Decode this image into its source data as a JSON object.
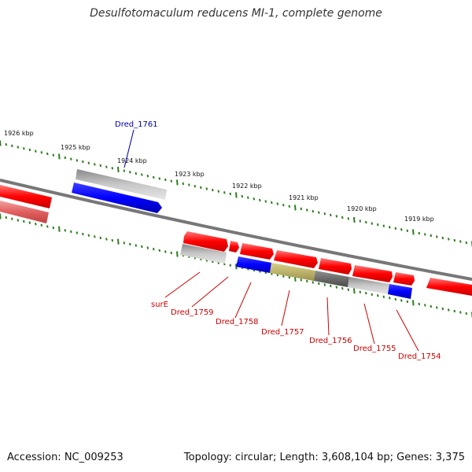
{
  "title": "Desulfotomaculum reducens MI-1, complete genome",
  "footer": {
    "accession": "Accession: NC_009253",
    "topology": "Topology: circular; Length: 3,608,104 bp; Genes: 3,375"
  },
  "colors": {
    "forward_gene": "#ff0000",
    "reverse_gene": "#0000ff",
    "tick": "#2f7d1f",
    "backbone": "#808080",
    "label_red": "#cc0000",
    "label_blue": "#0000aa"
  },
  "scale": {
    "unit": "kbp",
    "labels": [
      "1926 kbp",
      "1925 kbp",
      "1924 kbp",
      "1923 kbp",
      "1922 kbp",
      "1921 kbp",
      "1920 kbp",
      "1919 kbp"
    ]
  },
  "genes": [
    {
      "label": "Dred_1761",
      "color": "blue"
    },
    {
      "label": "surE",
      "color": "red"
    },
    {
      "label": "Dred_1759",
      "color": "red"
    },
    {
      "label": "Dred_1758",
      "color": "red"
    },
    {
      "label": "Dred_1757",
      "color": "red"
    },
    {
      "label": "Dred_1756",
      "color": "red"
    },
    {
      "label": "Dred_1755",
      "color": "red"
    },
    {
      "label": "Dred_1754",
      "color": "red"
    }
  ]
}
